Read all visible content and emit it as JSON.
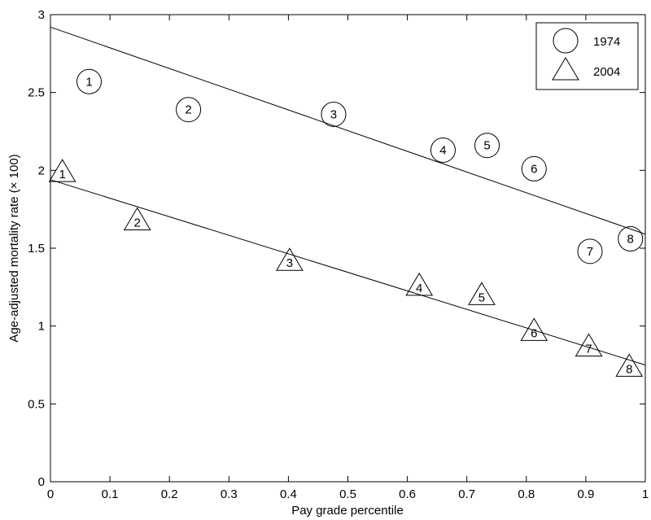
{
  "chart_data": {
    "type": "scatter",
    "title": "",
    "xlabel": "Pay grade percentile",
    "ylabel": "Age-adjusted mortality rate (× 100)",
    "xlim": [
      0,
      1
    ],
    "ylim": [
      0,
      3
    ],
    "xticks": [
      "0",
      "0.1",
      "0.2",
      "0.3",
      "0.4",
      "0.5",
      "0.6",
      "0.7",
      "0.8",
      "0.9",
      "1"
    ],
    "yticks": [
      "0",
      "0.5",
      "1",
      "1.5",
      "2",
      "2.5",
      "3"
    ],
    "grid": false,
    "legend_position": "top-right",
    "series": [
      {
        "name": "1974",
        "marker": "circle",
        "points": [
          {
            "label": "1",
            "x": 0.065,
            "y": 2.57
          },
          {
            "label": "2",
            "x": 0.232,
            "y": 2.39
          },
          {
            "label": "3",
            "x": 0.476,
            "y": 2.36
          },
          {
            "label": "4",
            "x": 0.66,
            "y": 2.13
          },
          {
            "label": "5",
            "x": 0.734,
            "y": 2.16
          },
          {
            "label": "6",
            "x": 0.813,
            "y": 2.01
          },
          {
            "label": "7",
            "x": 0.907,
            "y": 1.48
          },
          {
            "label": "8",
            "x": 0.975,
            "y": 1.56
          }
        ],
        "fit_line": {
          "x": [
            0,
            1
          ],
          "y": [
            2.92,
            1.59
          ]
        }
      },
      {
        "name": "2004",
        "marker": "triangle",
        "points": [
          {
            "label": "1",
            "x": 0.02,
            "y": 1.98
          },
          {
            "label": "2",
            "x": 0.146,
            "y": 1.67
          },
          {
            "label": "3",
            "x": 0.402,
            "y": 1.41
          },
          {
            "label": "4",
            "x": 0.62,
            "y": 1.25
          },
          {
            "label": "5",
            "x": 0.725,
            "y": 1.19
          },
          {
            "label": "6",
            "x": 0.813,
            "y": 0.96
          },
          {
            "label": "7",
            "x": 0.905,
            "y": 0.86
          },
          {
            "label": "8",
            "x": 0.973,
            "y": 0.73
          }
        ],
        "fit_line": {
          "x": [
            0,
            1
          ],
          "y": [
            1.94,
            0.75
          ]
        }
      }
    ]
  }
}
